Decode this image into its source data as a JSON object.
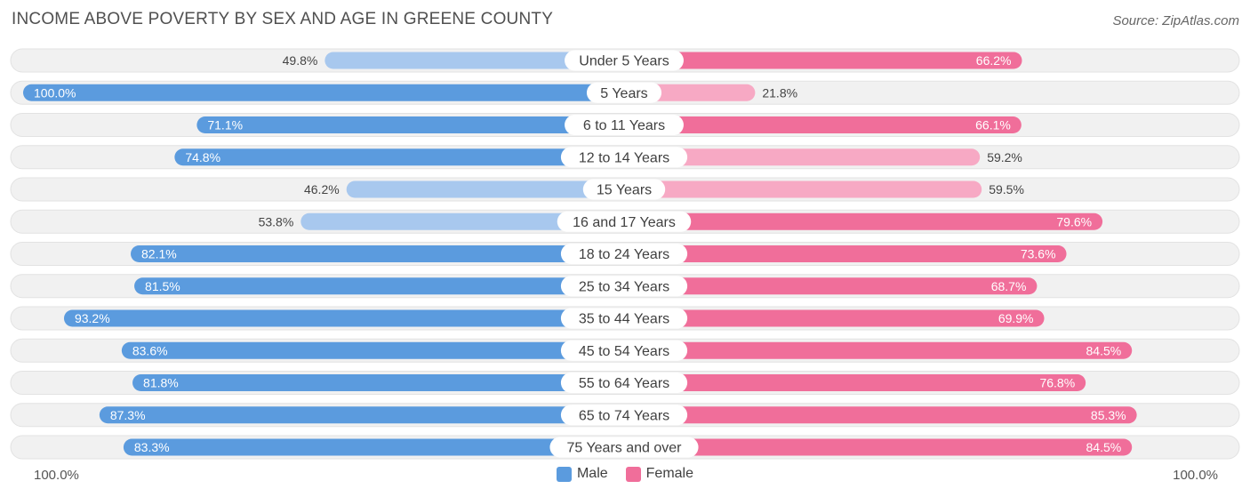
{
  "title": "INCOME ABOVE POVERTY BY SEX AND AGE IN GREENE COUNTY",
  "source": "Source: ZipAtlas.com",
  "colors": {
    "male_dark": "#5b9bde",
    "male_light": "#a8c8ee",
    "female_dark": "#f06e9a",
    "female_light": "#f7a9c4",
    "row_bg": "#f1f1f1",
    "row_border": "#e2e2e2"
  },
  "legend": {
    "male": "Male",
    "female": "Female"
  },
  "axis": {
    "left": "100.0%",
    "right": "100.0%"
  },
  "chart_data": {
    "type": "bar",
    "orientation": "horizontal-diverging",
    "title": "INCOME ABOVE POVERTY BY SEX AND AGE IN GREENE COUNTY",
    "xlim": [
      0,
      100
    ],
    "categories": [
      "Under 5 Years",
      "5 Years",
      "6 to 11 Years",
      "12 to 14 Years",
      "15 Years",
      "16 and 17 Years",
      "18 to 24 Years",
      "25 to 34 Years",
      "35 to 44 Years",
      "45 to 54 Years",
      "55 to 64 Years",
      "65 to 74 Years",
      "75 Years and over"
    ],
    "series": [
      {
        "name": "Male",
        "side": "left",
        "values": [
          49.8,
          100.0,
          71.1,
          74.8,
          46.2,
          53.8,
          82.1,
          81.5,
          93.2,
          83.6,
          81.8,
          87.3,
          83.3
        ],
        "labels": [
          "49.8%",
          "100.0%",
          "71.1%",
          "74.8%",
          "46.2%",
          "53.8%",
          "82.1%",
          "81.5%",
          "93.2%",
          "83.6%",
          "81.8%",
          "87.3%",
          "83.3%"
        ]
      },
      {
        "name": "Female",
        "side": "right",
        "values": [
          66.2,
          21.8,
          66.1,
          59.2,
          59.5,
          79.6,
          73.6,
          68.7,
          69.9,
          84.5,
          76.8,
          85.3,
          84.5
        ],
        "labels": [
          "66.2%",
          "21.8%",
          "66.1%",
          "59.2%",
          "59.5%",
          "79.6%",
          "73.6%",
          "68.7%",
          "69.9%",
          "84.5%",
          "76.8%",
          "85.3%",
          "84.5%"
        ]
      }
    ]
  }
}
